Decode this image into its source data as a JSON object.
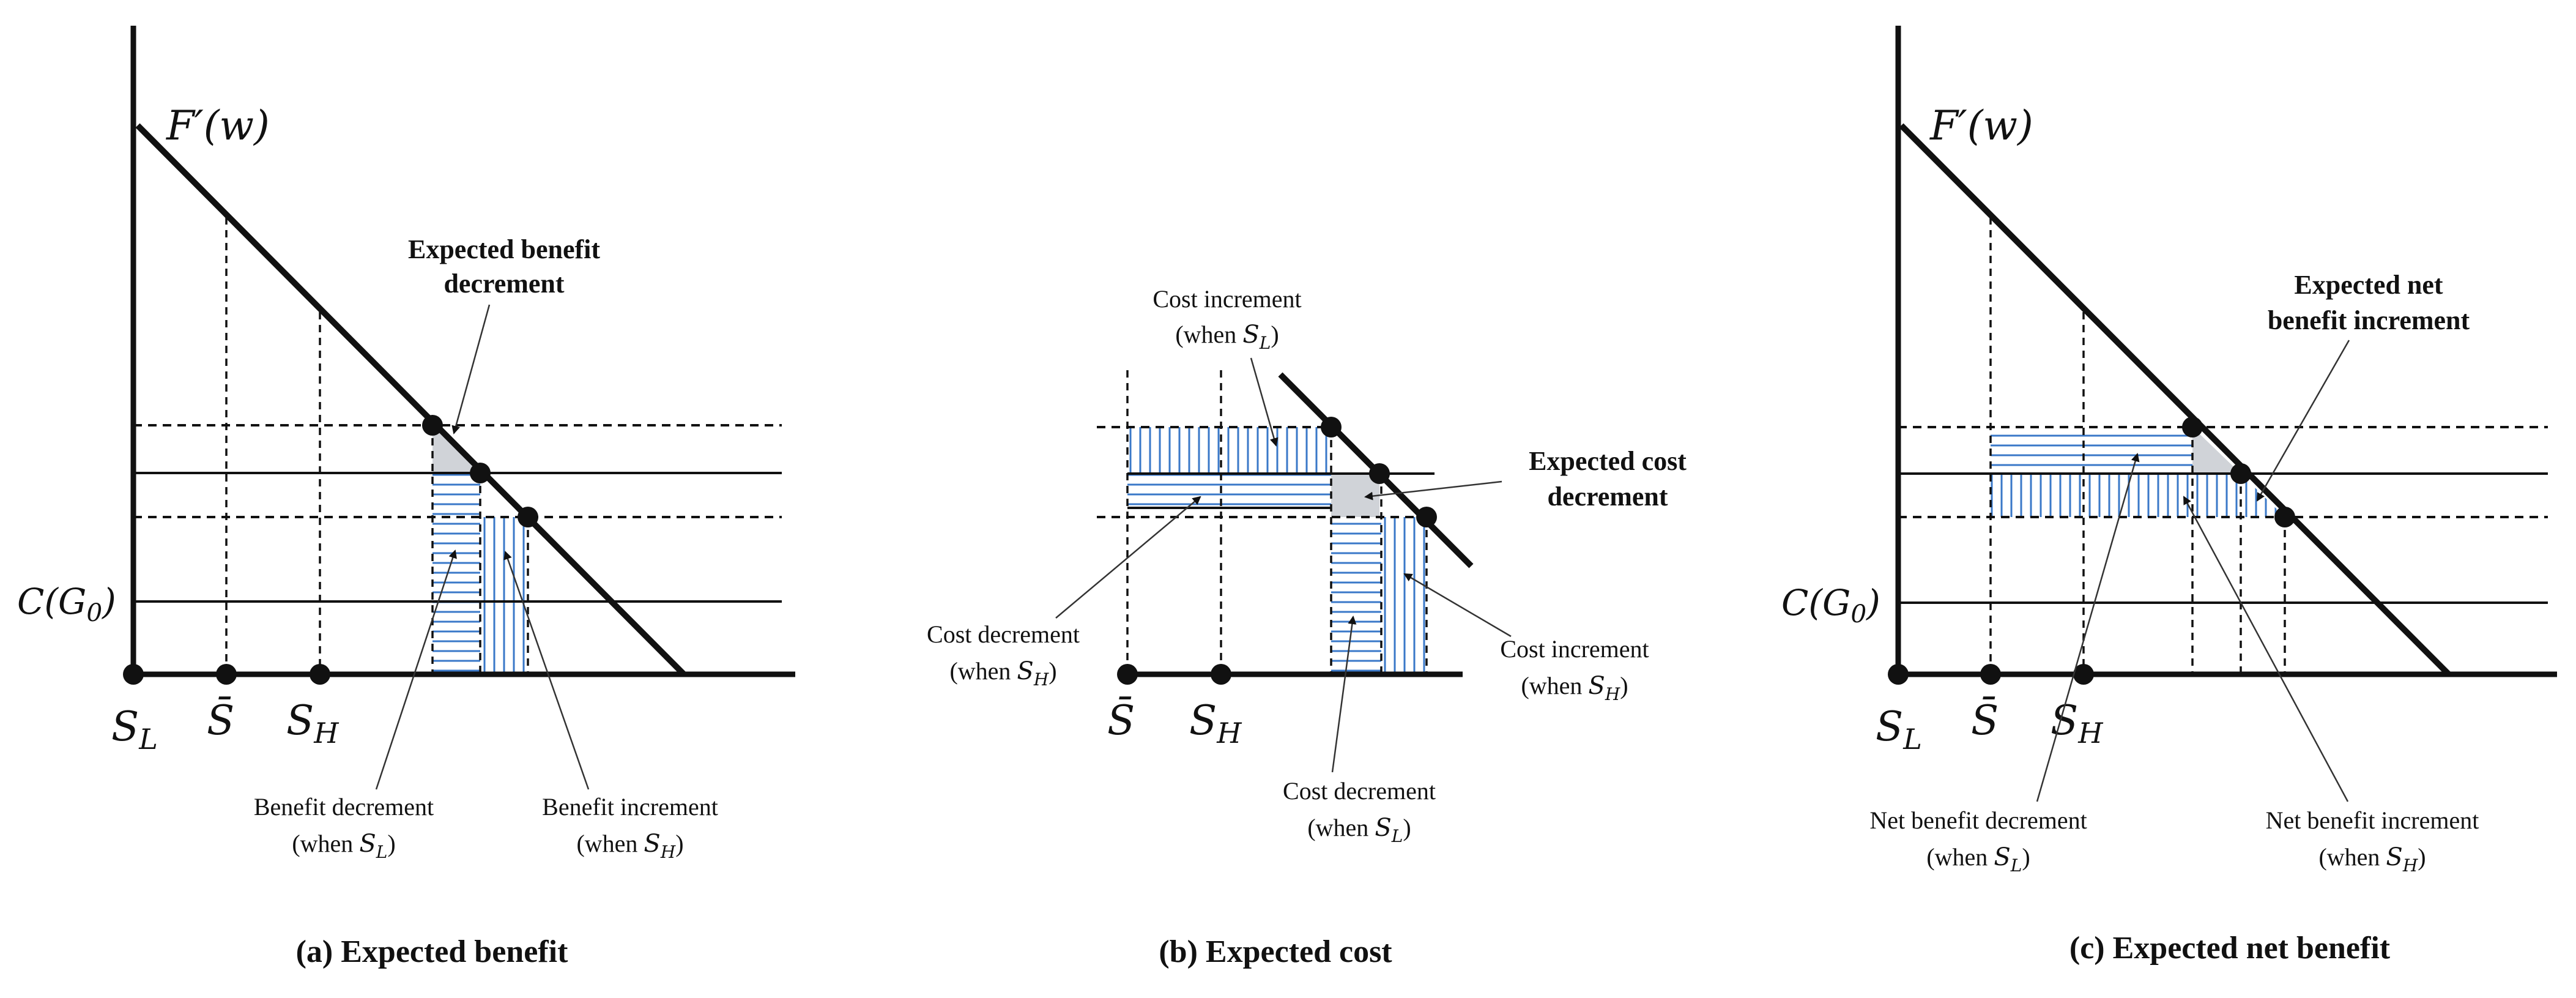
{
  "panels": {
    "a": {
      "caption": "(a) Expected benefit",
      "curve_label": "F′(w)",
      "cost_label": "C(G",
      "cost_sub": "0",
      "cost_close": ")",
      "s_low": "S",
      "s_low_sub": "L",
      "s_bar": "S̄",
      "s_high": "S",
      "s_high_sub": "H",
      "title_line1": "Expected benefit",
      "title_line2": "decrement",
      "left_note_line1": "Benefit decrement",
      "left_note_line2_pre": "(when ",
      "left_note_line2_s": "S",
      "left_note_line2_sub": "L",
      "left_note_line2_post": ")",
      "right_note_line1": "Benefit increment",
      "right_note_line2_pre": "(when ",
      "right_note_line2_s": "S",
      "right_note_line2_sub": "H",
      "right_note_line2_post": ")"
    },
    "b": {
      "caption": "(b) Expected cost",
      "s_bar": "S̄",
      "s_high": "S",
      "s_high_sub": "H",
      "top_note_line1": "Cost increment",
      "top_note_line2_pre": "(when ",
      "top_note_line2_s": "S",
      "top_note_line2_sub": "L",
      "top_note_line2_post": ")",
      "title_line1": "Expected cost",
      "title_line2": "decrement",
      "left_note_line1": "Cost decrement",
      "left_note_line2_pre": "(when ",
      "left_note_line2_s": "S",
      "left_note_line2_sub": "H",
      "left_note_line2_post": ")",
      "right_note_line1": "Cost increment",
      "right_note_line2_pre": "(when ",
      "right_note_line2_s": "S",
      "right_note_line2_sub": "H",
      "right_note_line2_post": ")",
      "bottom_note_line1": "Cost decrement",
      "bottom_note_line2_pre": "(when ",
      "bottom_note_line2_s": "S",
      "bottom_note_line2_sub": "L",
      "bottom_note_line2_post": ")"
    },
    "c": {
      "caption": "(c) Expected net benefit",
      "curve_label": "F′(w)",
      "cost_label": "C(G",
      "cost_sub": "0",
      "cost_close": ")",
      "s_low": "S",
      "s_low_sub": "L",
      "s_bar": "S̄",
      "s_high": "S",
      "s_high_sub": "H",
      "title_line1": "Expected net",
      "title_line2": "benefit increment",
      "left_note_line1": "Net benefit decrement",
      "left_note_line2_pre": "(when ",
      "left_note_line2_s": "S",
      "left_note_line2_sub": "L",
      "left_note_line2_post": ")",
      "right_note_line1": "Net benefit increment",
      "right_note_line2_pre": "(when ",
      "right_note_line2_s": "S",
      "right_note_line2_sub": "H",
      "right_note_line2_post": ")"
    }
  },
  "colors": {
    "hatch": "#3a78c8",
    "shade": "#d0d3d8",
    "ink": "#111111"
  }
}
